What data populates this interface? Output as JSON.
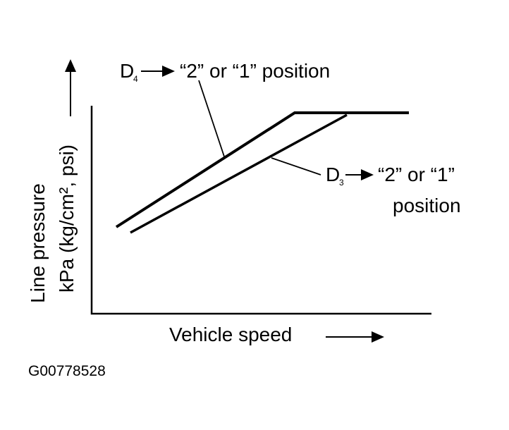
{
  "diagram": {
    "y_axis_label": {
      "line1": "Line pressure",
      "line2": "kPa (kg/cm², psi)"
    },
    "x_axis_label": "Vehicle speed",
    "upper_curve_label": {
      "letter": "D",
      "subscript": "4",
      "text": "“2” or “1” position"
    },
    "lower_curve_label": {
      "letter": "D",
      "subscript": "3",
      "text": "“2” or “1”",
      "text2": "position"
    },
    "figure_code": "G00778528"
  }
}
